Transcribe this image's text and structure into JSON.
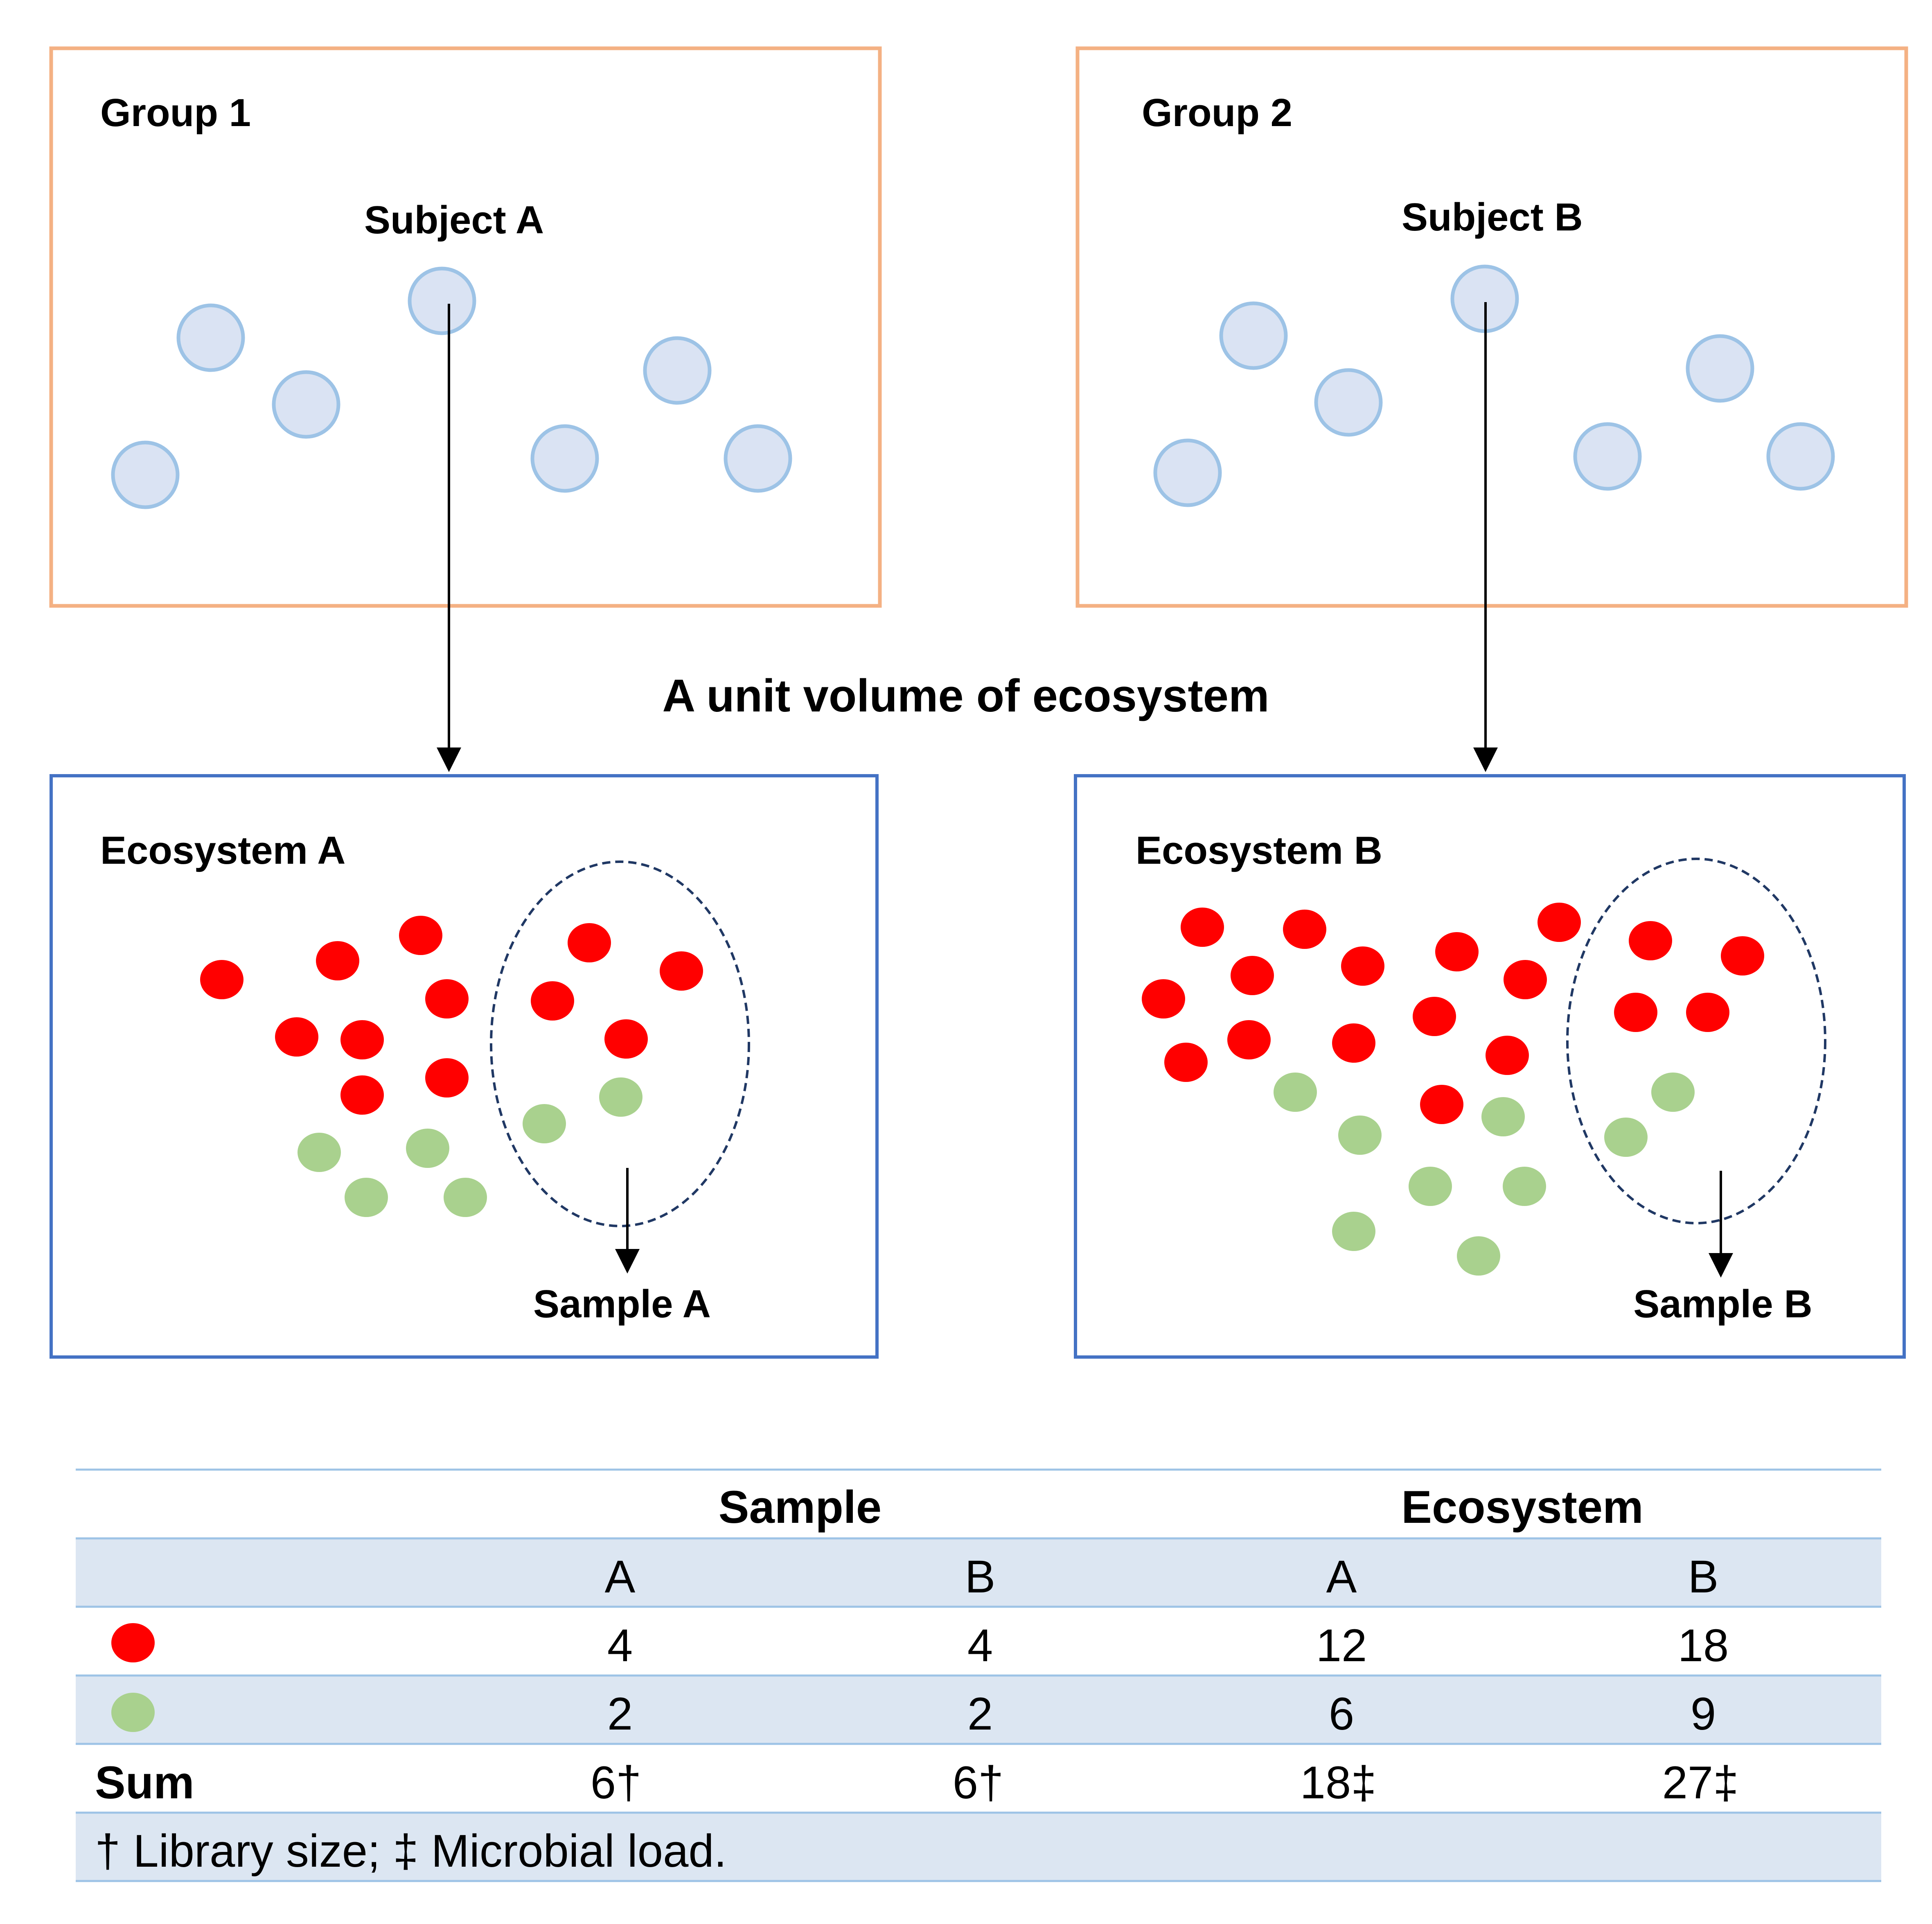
{
  "groups": [
    {
      "label": "Group 1",
      "subject": "Subject A"
    },
    {
      "label": "Group 2",
      "subject": "Subject B"
    }
  ],
  "center_label": "A unit volume of ecosystem",
  "ecosystems": [
    {
      "label": "Ecosystem A",
      "sample": "Sample A",
      "red_count": 12,
      "green_count": 6
    },
    {
      "label": "Ecosystem B",
      "sample": "Sample B",
      "red_count": 18,
      "green_count": 9
    }
  ],
  "table": {
    "group_headers": [
      "Sample",
      "Ecosystem"
    ],
    "sub_headers": [
      "A",
      "B",
      "A",
      "B"
    ],
    "rows": [
      {
        "marker": "red-dot",
        "values": [
          "4",
          "4",
          "12",
          "18"
        ]
      },
      {
        "marker": "green-dot",
        "values": [
          "2",
          "2",
          "6",
          "9"
        ]
      },
      {
        "label": "Sum",
        "values": [
          "6†",
          "6†",
          "18‡",
          "27‡"
        ]
      }
    ],
    "footnote": "† Library size; ‡ Microbial load."
  },
  "colors": {
    "group_border": "#f4b183",
    "ecosystem_border": "#4472c4",
    "subject_fill": "#dae3f3",
    "subject_stroke": "#9dc3e6",
    "red": "#ff0000",
    "green": "#a9d18e",
    "dashed": "#203864",
    "table_band": "#dce6f2",
    "table_line": "#9dc3e6"
  }
}
